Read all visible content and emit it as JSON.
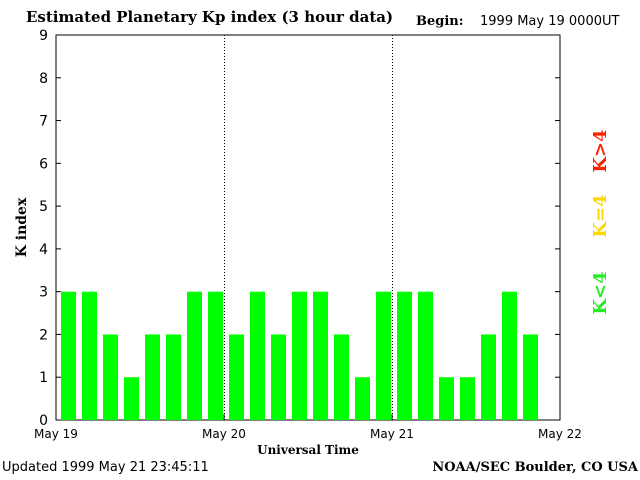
{
  "header": {
    "title": "Estimated Planetary Kp index (3 hour data)",
    "begin_label": "Begin:",
    "begin_value": "1999 May 19 0000UT"
  },
  "footer": {
    "updated": "Updated 1999 May 21 23:45:11",
    "source": "NOAA/SEC Boulder, CO USA"
  },
  "legend": [
    {
      "label": "K>4",
      "color": "#ff2000"
    },
    {
      "label": "K=4",
      "color": "#ffd700"
    },
    {
      "label": "K<4",
      "color": "#22ee22"
    }
  ],
  "chart_data": {
    "type": "bar",
    "title": "Estimated Planetary Kp index (3 hour data)",
    "xlabel": "Universal Time",
    "ylabel": "K index",
    "ylim": [
      0,
      9
    ],
    "yticks": [
      0,
      1,
      2,
      3,
      4,
      5,
      6,
      7,
      8,
      9
    ],
    "xticks": [
      "May 19",
      "May 20",
      "May 21",
      "May 22"
    ],
    "interval_hours": 3,
    "values": [
      3,
      3,
      2,
      1,
      2,
      2,
      3,
      3,
      2,
      3,
      2,
      3,
      3,
      2,
      1,
      3,
      3,
      3,
      1,
      1,
      2,
      3,
      2
    ],
    "bar_color": "#00ff00"
  }
}
